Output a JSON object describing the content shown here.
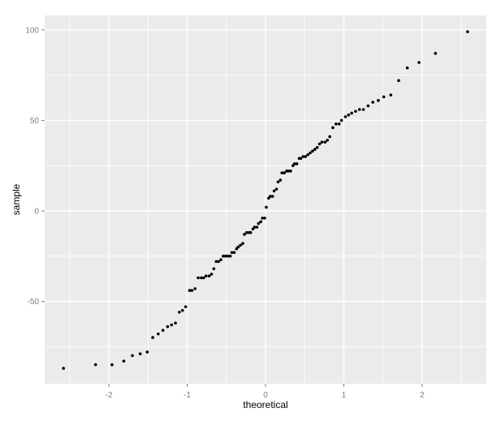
{
  "figure": {
    "background": "#ffffff"
  },
  "chart_data": {
    "type": "scatter",
    "title": "",
    "xlabel": "theoretical",
    "ylabel": "sample",
    "xlim": [
      -2.82,
      2.82
    ],
    "ylim": [
      -95.5,
      108
    ],
    "x_ticks": [
      -2,
      -1,
      0,
      1,
      2
    ],
    "y_ticks": [
      -50,
      0,
      50,
      100
    ],
    "x_minor_ticks": [
      -2.5,
      -1.5,
      -0.5,
      0.5,
      1.5,
      2.5
    ],
    "y_minor_ticks": [
      -75,
      -25,
      25,
      75
    ],
    "grid": "major+minor",
    "legend_position": "none",
    "panel_background": "#ebebeb",
    "grid_color": "#ffffff",
    "point_color": "#000000",
    "tick_label_color": "#7f7f7f",
    "tick_mark_color": "#7f7f7f",
    "axis_title_color": "#000000",
    "points": [
      [
        -2.58,
        -87
      ],
      [
        -2.17,
        -85
      ],
      [
        -1.96,
        -85
      ],
      [
        -1.81,
        -83
      ],
      [
        -1.7,
        -80
      ],
      [
        -1.6,
        -79
      ],
      [
        -1.51,
        -78
      ],
      [
        -1.44,
        -70
      ],
      [
        -1.37,
        -68
      ],
      [
        -1.31,
        -66
      ],
      [
        -1.25,
        -64
      ],
      [
        -1.2,
        -63
      ],
      [
        -1.15,
        -62
      ],
      [
        -1.1,
        -56
      ],
      [
        -1.06,
        -55
      ],
      [
        -1.02,
        -53
      ],
      [
        -0.97,
        -44
      ],
      [
        -0.94,
        -44
      ],
      [
        -0.9,
        -43
      ],
      [
        -0.86,
        -37
      ],
      [
        -0.82,
        -37
      ],
      [
        -0.79,
        -37
      ],
      [
        -0.76,
        -36
      ],
      [
        -0.72,
        -36
      ],
      [
        -0.69,
        -35
      ],
      [
        -0.66,
        -32
      ],
      [
        -0.63,
        -28
      ],
      [
        -0.6,
        -28
      ],
      [
        -0.57,
        -27
      ],
      [
        -0.54,
        -25
      ],
      [
        -0.51,
        -25
      ],
      [
        -0.48,
        -25
      ],
      [
        -0.45,
        -25
      ],
      [
        -0.43,
        -23
      ],
      [
        -0.4,
        -23
      ],
      [
        -0.37,
        -21
      ],
      [
        -0.35,
        -20
      ],
      [
        -0.32,
        -19
      ],
      [
        -0.29,
        -18
      ],
      [
        -0.27,
        -13
      ],
      [
        -0.24,
        -12
      ],
      [
        -0.21,
        -12
      ],
      [
        -0.19,
        -12
      ],
      [
        -0.16,
        -10
      ],
      [
        -0.14,
        -9
      ],
      [
        -0.11,
        -9
      ],
      [
        -0.09,
        -7
      ],
      [
        -0.06,
        -6
      ],
      [
        -0.04,
        -4
      ],
      [
        -0.01,
        -4
      ],
      [
        0.01,
        2
      ],
      [
        0.04,
        7
      ],
      [
        0.06,
        8
      ],
      [
        0.09,
        8
      ],
      [
        0.11,
        11
      ],
      [
        0.14,
        12
      ],
      [
        0.16,
        16
      ],
      [
        0.19,
        17
      ],
      [
        0.21,
        21
      ],
      [
        0.24,
        21
      ],
      [
        0.27,
        22
      ],
      [
        0.29,
        22
      ],
      [
        0.32,
        22
      ],
      [
        0.35,
        25
      ],
      [
        0.37,
        26
      ],
      [
        0.4,
        26
      ],
      [
        0.43,
        29
      ],
      [
        0.45,
        29
      ],
      [
        0.48,
        30
      ],
      [
        0.51,
        30
      ],
      [
        0.54,
        31
      ],
      [
        0.57,
        32
      ],
      [
        0.6,
        33
      ],
      [
        0.63,
        34
      ],
      [
        0.66,
        35
      ],
      [
        0.69,
        37
      ],
      [
        0.72,
        38
      ],
      [
        0.76,
        38
      ],
      [
        0.79,
        39
      ],
      [
        0.82,
        41
      ],
      [
        0.86,
        46
      ],
      [
        0.9,
        48
      ],
      [
        0.94,
        48
      ],
      [
        0.97,
        50
      ],
      [
        1.02,
        52
      ],
      [
        1.06,
        53
      ],
      [
        1.1,
        54
      ],
      [
        1.15,
        55
      ],
      [
        1.2,
        56
      ],
      [
        1.25,
        56
      ],
      [
        1.31,
        58
      ],
      [
        1.37,
        60
      ],
      [
        1.44,
        61
      ],
      [
        1.51,
        63
      ],
      [
        1.6,
        64
      ],
      [
        1.7,
        72
      ],
      [
        1.81,
        79
      ],
      [
        1.96,
        82
      ],
      [
        2.17,
        87
      ],
      [
        2.58,
        99
      ]
    ]
  }
}
